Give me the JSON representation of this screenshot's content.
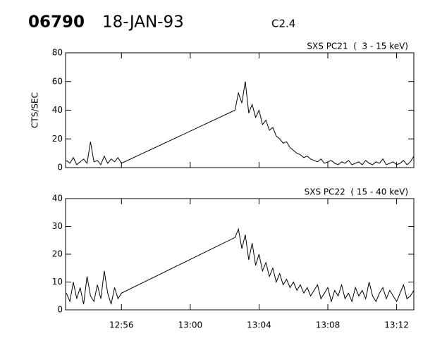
{
  "header": {
    "id": "06790",
    "date": "18-JAN-93",
    "class": "C2.4"
  },
  "chart_data": [
    {
      "type": "line",
      "title": "SXS PC21  (  3 - 15 keV)",
      "ylabel": "CTS/SEC",
      "color": "#000000",
      "x": [
        772.8,
        773.0,
        773.2,
        773.4,
        773.6,
        773.8,
        774.0,
        774.2,
        774.4,
        774.6,
        774.8,
        775.0,
        775.2,
        775.4,
        775.6,
        775.8,
        776.0,
        782.6,
        782.8,
        783.0,
        783.2,
        783.4,
        783.6,
        783.8,
        784.0,
        784.2,
        784.4,
        784.6,
        784.8,
        785.0,
        785.2,
        785.4,
        785.6,
        785.8,
        786.0,
        786.2,
        786.4,
        786.6,
        786.8,
        787.0,
        787.2,
        787.4,
        787.6,
        787.8,
        788.0,
        788.2,
        788.4,
        788.6,
        788.8,
        789.0,
        789.2,
        789.4,
        789.6,
        789.8,
        790.0,
        790.2,
        790.4,
        790.6,
        790.8,
        791.0,
        791.2,
        791.4,
        791.6,
        791.8,
        792.0,
        792.2,
        792.4,
        792.6,
        792.8,
        793.0
      ],
      "values": [
        5,
        3,
        7,
        2,
        4,
        6,
        3,
        18,
        4,
        5,
        2,
        8,
        3,
        6,
        4,
        7,
        3,
        40,
        52,
        45,
        60,
        38,
        44,
        35,
        40,
        30,
        33,
        26,
        28,
        22,
        20,
        17,
        18,
        14,
        12,
        10,
        9,
        7,
        8,
        6,
        5,
        4,
        6,
        3,
        4,
        5,
        3,
        2,
        4,
        3,
        5,
        2,
        3,
        4,
        2,
        5,
        3,
        2,
        4,
        3,
        6,
        2,
        3,
        4,
        2,
        3,
        5,
        2,
        4,
        8
      ],
      "xlim": [
        772.75,
        793.0
      ],
      "xticks": [
        776,
        780,
        784,
        788,
        792
      ],
      "ylim": [
        0,
        80
      ],
      "yticks": [
        0,
        20,
        40,
        60,
        80
      ]
    },
    {
      "type": "line",
      "title": "SXS PC22  ( 15 - 40 keV)",
      "color": "#000000",
      "x": [
        772.8,
        773.0,
        773.2,
        773.4,
        773.6,
        773.8,
        774.0,
        774.2,
        774.4,
        774.6,
        774.8,
        775.0,
        775.2,
        775.4,
        775.6,
        775.8,
        776.0,
        782.6,
        782.8,
        783.0,
        783.2,
        783.4,
        783.6,
        783.8,
        784.0,
        784.2,
        784.4,
        784.6,
        784.8,
        785.0,
        785.2,
        785.4,
        785.6,
        785.8,
        786.0,
        786.2,
        786.4,
        786.6,
        786.8,
        787.0,
        787.2,
        787.4,
        787.6,
        787.8,
        788.0,
        788.2,
        788.4,
        788.6,
        788.8,
        789.0,
        789.2,
        789.4,
        789.6,
        789.8,
        790.0,
        790.2,
        790.4,
        790.6,
        790.8,
        791.0,
        791.2,
        791.4,
        791.6,
        791.8,
        792.0,
        792.2,
        792.4,
        792.6,
        792.8,
        793.0
      ],
      "values": [
        6,
        3,
        10,
        4,
        8,
        2,
        12,
        5,
        3,
        9,
        4,
        14,
        6,
        2,
        8,
        4,
        6,
        26,
        29,
        22,
        27,
        18,
        24,
        16,
        20,
        14,
        17,
        12,
        15,
        10,
        13,
        9,
        11,
        8,
        10,
        7,
        9,
        6,
        8,
        5,
        7,
        9,
        4,
        6,
        8,
        3,
        7,
        5,
        9,
        4,
        6,
        3,
        8,
        5,
        7,
        4,
        10,
        5,
        3,
        6,
        8,
        4,
        7,
        5,
        3,
        6,
        9,
        4,
        5,
        7
      ],
      "xlim": [
        772.75,
        793.0
      ],
      "xticks": [
        {
          "value": 776,
          "label": "12:56"
        },
        {
          "value": 780,
          "label": "13:00"
        },
        {
          "value": 784,
          "label": "13:04"
        },
        {
          "value": 788,
          "label": "13:08"
        },
        {
          "value": 792,
          "label": "13:12"
        }
      ],
      "ylim": [
        0,
        40
      ],
      "yticks": [
        0,
        10,
        20,
        30,
        40
      ]
    }
  ]
}
